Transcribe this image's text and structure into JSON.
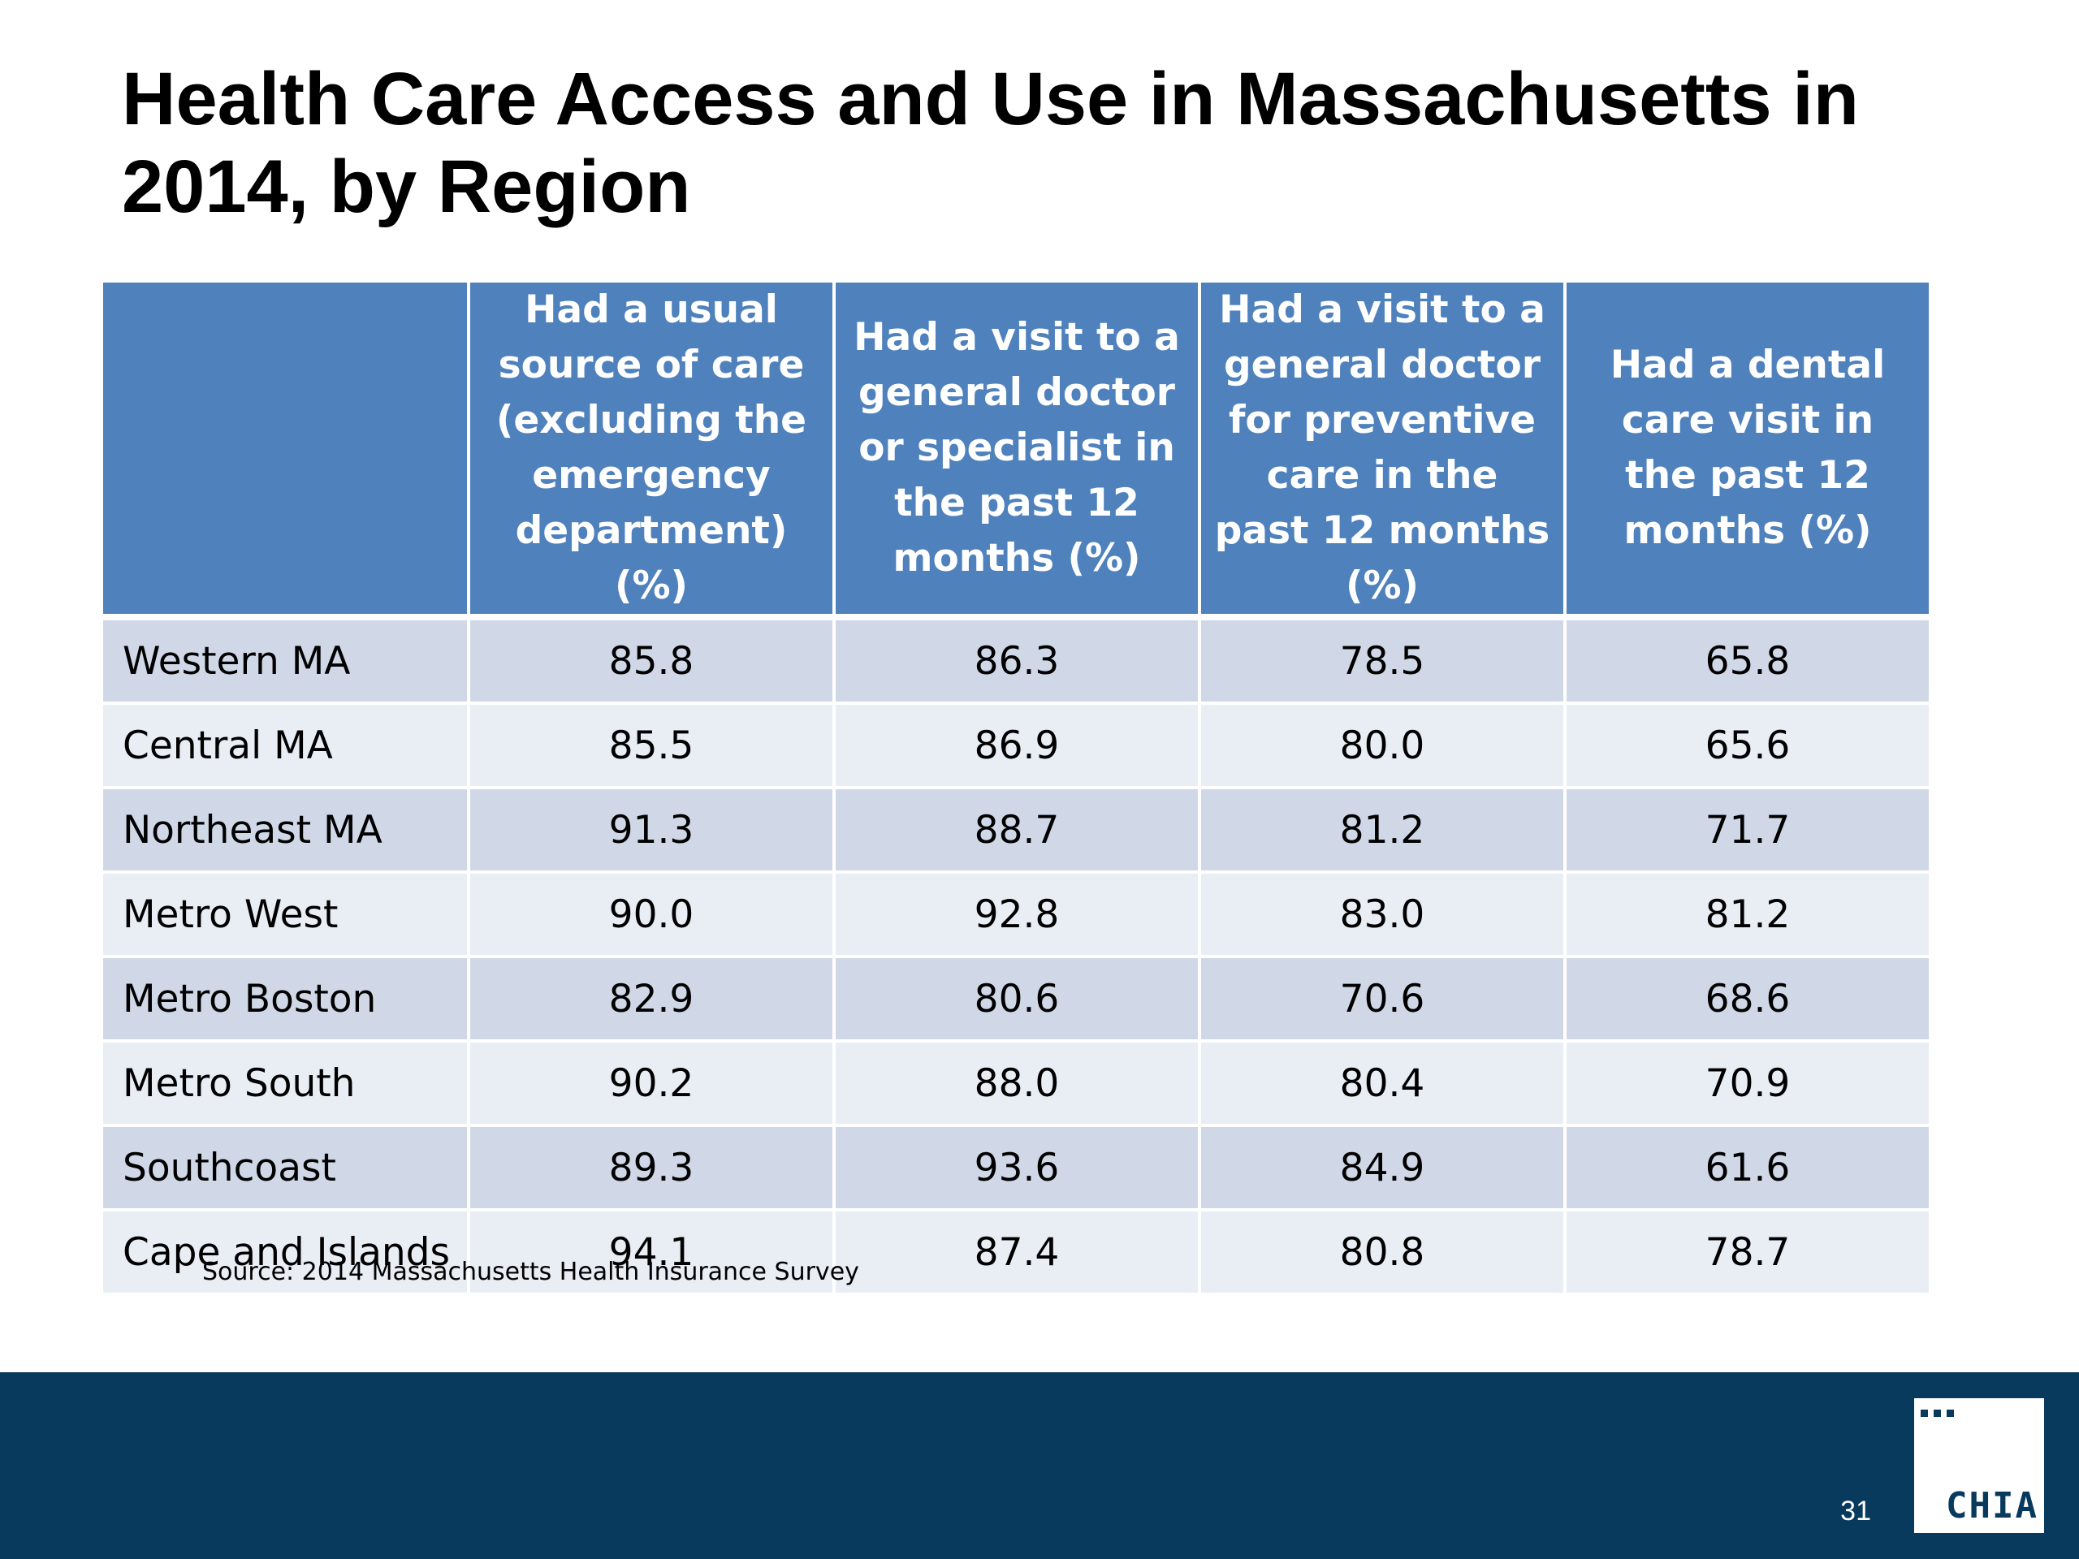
{
  "slide": {
    "title": "Health Care Access and Use in Massachusetts in 2014, by Region",
    "source": "Source:  2014 Massachusetts Health Insurance Survey",
    "page_number": "31",
    "logo_text": "CHIA."
  },
  "table": {
    "headers": [
      "",
      "Had a usual source of care (excluding the emergency department) (%)",
      "Had a visit to a general doctor or specialist in the past 12 months (%)",
      "Had a visit to a general doctor for preventive care in the past 12 months (%)",
      "Had a dental care visit in the past 12 months (%)"
    ],
    "rows": [
      [
        "Western MA",
        "85.8",
        "86.3",
        "78.5",
        "65.8"
      ],
      [
        "Central MA",
        "85.5",
        "86.9",
        "80.0",
        "65.6"
      ],
      [
        "Northeast MA",
        "91.3",
        "88.7",
        "81.2",
        "71.7"
      ],
      [
        "Metro West",
        "90.0",
        "92.8",
        "83.0",
        "81.2"
      ],
      [
        "Metro Boston",
        "82.9",
        "80.6",
        "70.6",
        "68.6"
      ],
      [
        "Metro South",
        "90.2",
        "88.0",
        "80.4",
        "70.9"
      ],
      [
        "Southcoast",
        "89.3",
        "93.6",
        "84.9",
        "61.6"
      ],
      [
        "Cape and Islands",
        "94.1",
        "87.4",
        "80.8",
        "78.7"
      ]
    ]
  },
  "colors": {
    "header_blue": "#4f81bd",
    "row_dark": "#d0d8e8",
    "row_light": "#e9edf4",
    "footer_navy": "#083a5e"
  }
}
